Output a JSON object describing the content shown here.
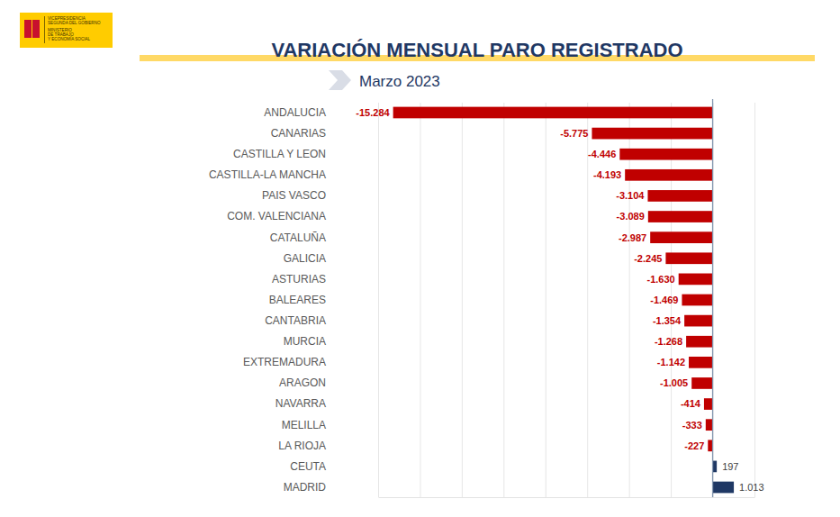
{
  "chart_data": {
    "type": "bar",
    "orientation": "horizontal",
    "title": "VARIACIÓN MENSUAL PARO REGISTRADO",
    "subtitle": "Marzo 2023",
    "annotations": [
      "VICEPRESIDENCIA",
      "SEGUNDA DEL GOBIERNO",
      "MINISTERIO",
      "DE TRABAJO",
      "Y ECONOMÍA SOCIAL"
    ],
    "categories": [
      "ANDALUCIA",
      "CANARIAS",
      "CASTILLA Y LEON",
      "CASTILLA-LA MANCHA",
      "PAIS VASCO",
      "COM. VALENCIANA",
      "CATALUÑA",
      "GALICIA",
      "ASTURIAS",
      "BALEARES",
      "CANTABRIA",
      "MURCIA",
      "EXTREMADURA",
      "ARAGON",
      "NAVARRA",
      "MELILLA",
      "LA RIOJA",
      "CEUTA",
      "MADRID"
    ],
    "values": [
      -15284,
      -5775,
      -4446,
      -4193,
      -3104,
      -3089,
      -2987,
      -2245,
      -1630,
      -1469,
      -1354,
      -1268,
      -1142,
      -1005,
      -414,
      -333,
      -227,
      197,
      1013
    ],
    "value_labels": [
      "-15.284",
      "-5.775",
      "-4.446",
      "-4.193",
      "-3.104",
      "-3.089",
      "-2.987",
      "-2.245",
      "-1.630",
      "-1.469",
      "-1.354",
      "-1.268",
      "-1.142",
      "-1.005",
      "-414",
      "-333",
      "-227",
      "197",
      "1.013"
    ],
    "colors": [
      "#c00000",
      "#c00000",
      "#c00000",
      "#c00000",
      "#c00000",
      "#c00000",
      "#c00000",
      "#c00000",
      "#c00000",
      "#c00000",
      "#c00000",
      "#c00000",
      "#c00000",
      "#c00000",
      "#c00000",
      "#c00000",
      "#c00000",
      "#1f3864",
      "#1f3864"
    ],
    "xlim": [
      -16000,
      2000
    ],
    "xticks": [
      -16000,
      -14000,
      -12000,
      -10000,
      -8000,
      -6000,
      -4000,
      -2000,
      0,
      2000
    ],
    "grid": true,
    "tick_labels": "y",
    "data_labels": true
  }
}
